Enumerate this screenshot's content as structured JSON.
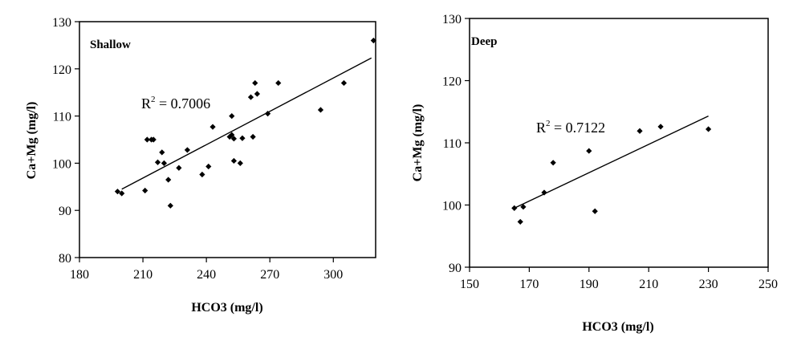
{
  "chart_data": [
    {
      "type": "scatter",
      "panel_label": "Shallow",
      "xlabel": "HCO3  (mg/l)",
      "ylabel": "Ca+Mg  (mg/l)",
      "xlim": [
        180,
        320
      ],
      "ylim": [
        80,
        130
      ],
      "xticks": [
        "180",
        "210",
        "240",
        "270",
        "300"
      ],
      "yticks": [
        "80",
        "90",
        "100",
        "110",
        "120",
        "130"
      ],
      "annotation": {
        "prefix": "R",
        "sup": "2",
        "suffix": " = 0.7006"
      },
      "trendline": {
        "x": [
          200,
          318
        ],
        "y": [
          94.5,
          122.3
        ]
      },
      "points": [
        [
          198,
          94
        ],
        [
          200,
          93.6
        ],
        [
          211,
          94.2
        ],
        [
          212,
          105
        ],
        [
          214,
          105
        ],
        [
          215,
          105
        ],
        [
          217,
          100.2
        ],
        [
          219,
          102.3
        ],
        [
          220,
          100
        ],
        [
          222,
          96.5
        ],
        [
          223,
          91
        ],
        [
          227,
          99
        ],
        [
          231,
          102.8
        ],
        [
          238,
          97.6
        ],
        [
          241,
          99.3
        ],
        [
          243,
          107.7
        ],
        [
          251,
          105.6
        ],
        [
          252,
          106
        ],
        [
          252,
          110
        ],
        [
          253,
          100.5
        ],
        [
          253,
          105.2
        ],
        [
          256,
          100
        ],
        [
          257,
          105.3
        ],
        [
          261,
          114
        ],
        [
          262,
          105.6
        ],
        [
          263,
          117
        ],
        [
          264,
          114.7
        ],
        [
          269,
          110.5
        ],
        [
          274,
          117
        ],
        [
          294,
          111.3
        ],
        [
          305,
          117
        ],
        [
          319,
          126
        ]
      ]
    },
    {
      "type": "scatter",
      "panel_label": "Deep",
      "xlabel": "HCO3 (mg/l)",
      "ylabel": "Ca+Mg  (mg/l)",
      "xlim": [
        150,
        250
      ],
      "ylim": [
        90,
        130
      ],
      "xticks": [
        "150",
        "170",
        "190",
        "210",
        "230",
        "250"
      ],
      "yticks": [
        "90",
        "100",
        "110",
        "120",
        "130"
      ],
      "annotation": {
        "prefix": "R",
        "sup": "2",
        "suffix": " = 0.7122"
      },
      "trendline": {
        "x": [
          165,
          230
        ],
        "y": [
          99.5,
          114.3
        ]
      },
      "points": [
        [
          165,
          99.5
        ],
        [
          167,
          97.3
        ],
        [
          168,
          99.7
        ],
        [
          175,
          102
        ],
        [
          178,
          106.8
        ],
        [
          190,
          108.7
        ],
        [
          192,
          99
        ],
        [
          207,
          111.9
        ],
        [
          214,
          112.6
        ],
        [
          230,
          112.2
        ]
      ]
    }
  ]
}
